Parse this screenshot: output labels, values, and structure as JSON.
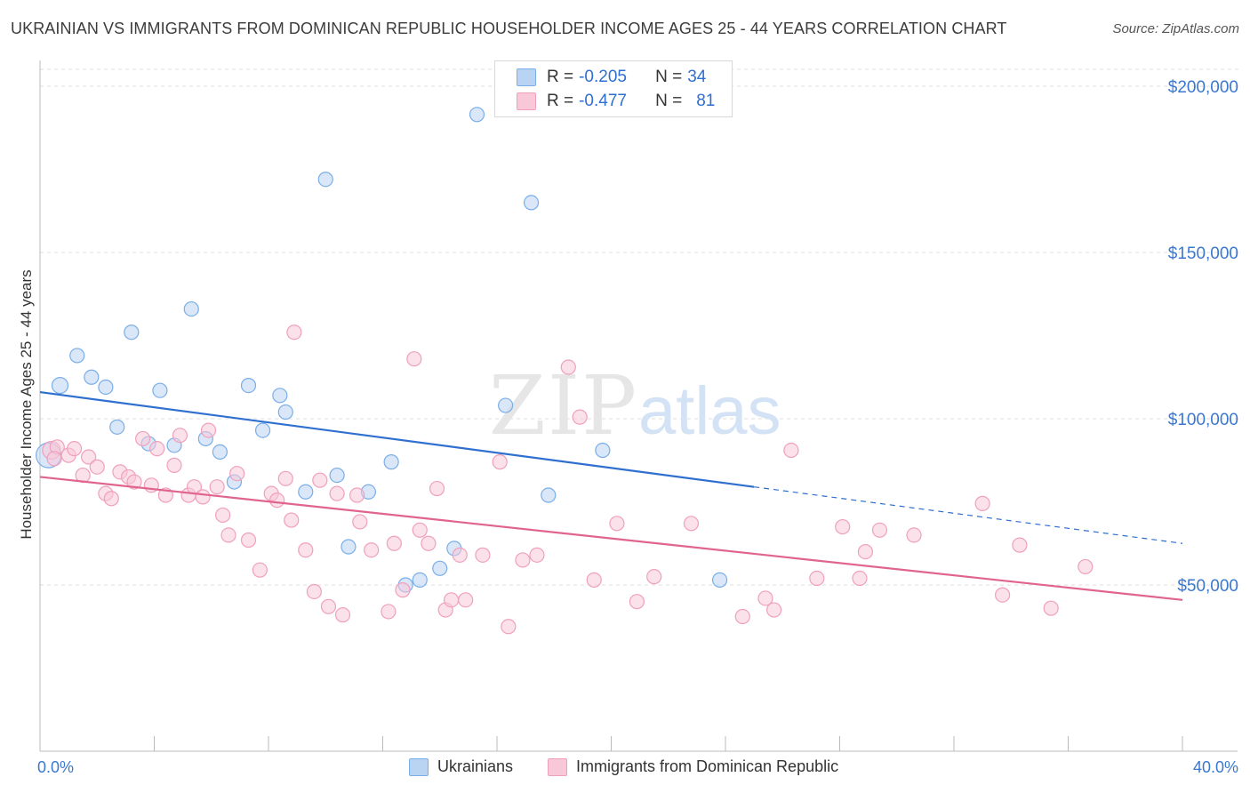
{
  "title": "UKRAINIAN VS IMMIGRANTS FROM DOMINICAN REPUBLIC HOUSEHOLDER INCOME AGES 25 - 44 YEARS CORRELATION CHART",
  "source": "Source: ZipAtlas.com",
  "watermark": {
    "zip": "ZIP",
    "atlas": "atlas"
  },
  "stats": [
    {
      "r_label": "R =",
      "r_value": "-0.205",
      "n_label": "N =",
      "n_value": "34"
    },
    {
      "r_label": "R =",
      "r_value": "-0.477",
      "n_label": "N =",
      "n_value": "81"
    }
  ],
  "legend": [
    {
      "label": "Ukrainians"
    },
    {
      "label": "Immigrants from Dominican Republic"
    }
  ],
  "chart_data": {
    "type": "scatter",
    "ylabel": "Householder Income Ages 25 - 44 years",
    "xlim": [
      0,
      40
    ],
    "ylim": [
      0,
      210000
    ],
    "x_tick_labels": [
      "0.0%",
      "40.0%"
    ],
    "y_ticks": [
      50000,
      100000,
      150000,
      200000
    ],
    "y_tick_labels": [
      "$50,000",
      "$100,000",
      "$150,000",
      "$200,000"
    ],
    "grid": true,
    "legend_position": "bottom",
    "series": [
      {
        "name": "Ukrainians",
        "color": "#7aaee8",
        "fill": "#b9d3f3",
        "line_color": "#2f6fd0",
        "trend": {
          "x0": 0,
          "y0": 108000,
          "x1": 25,
          "y1": 79500,
          "dash_to_x": 40,
          "dash_to_y": 62500
        },
        "points": [
          [
            0.3,
            89000,
            14
          ],
          [
            0.7,
            110000,
            9
          ],
          [
            1.3,
            119000,
            8
          ],
          [
            1.8,
            112500,
            8
          ],
          [
            2.3,
            109500,
            8
          ],
          [
            2.7,
            97500,
            8
          ],
          [
            3.2,
            126000,
            8
          ],
          [
            3.8,
            92500,
            8
          ],
          [
            4.2,
            108500,
            8
          ],
          [
            4.7,
            92000,
            8
          ],
          [
            5.3,
            133000,
            8
          ],
          [
            5.8,
            94000,
            8
          ],
          [
            6.3,
            90000,
            8
          ],
          [
            6.8,
            81000,
            8
          ],
          [
            7.3,
            110000,
            8
          ],
          [
            7.8,
            96500,
            8
          ],
          [
            8.4,
            107000,
            8
          ],
          [
            8.6,
            102000,
            8
          ],
          [
            9.3,
            78000,
            8
          ],
          [
            10.0,
            172000,
            8
          ],
          [
            10.4,
            83000,
            8
          ],
          [
            10.8,
            61500,
            8
          ],
          [
            11.5,
            78000,
            8
          ],
          [
            12.3,
            87000,
            8
          ],
          [
            12.8,
            50000,
            8
          ],
          [
            13.3,
            51500,
            8
          ],
          [
            14.0,
            55000,
            8
          ],
          [
            14.5,
            61000,
            8
          ],
          [
            15.3,
            191500,
            8
          ],
          [
            16.3,
            104000,
            8
          ],
          [
            17.2,
            165000,
            8
          ],
          [
            17.8,
            77000,
            8
          ],
          [
            19.7,
            90500,
            8
          ],
          [
            23.8,
            51500,
            8
          ]
        ]
      },
      {
        "name": "Immigrants from Dominican Republic",
        "color": "#f0a0bb",
        "fill": "#f8c8d8",
        "line_color": "#e0648e",
        "trend": {
          "x0": 0,
          "y0": 82500,
          "x1": 40,
          "y1": 45500
        },
        "points": [
          [
            0.4,
            90500,
            10
          ],
          [
            0.6,
            91500,
            8
          ],
          [
            1.0,
            89000,
            8
          ],
          [
            1.2,
            91000,
            8
          ],
          [
            1.5,
            83000,
            8
          ],
          [
            1.7,
            88500,
            8
          ],
          [
            2.0,
            85500,
            8
          ],
          [
            2.3,
            77500,
            8
          ],
          [
            2.5,
            76000,
            8
          ],
          [
            2.8,
            84000,
            8
          ],
          [
            3.1,
            82500,
            8
          ],
          [
            3.3,
            81000,
            8
          ],
          [
            3.6,
            94000,
            8
          ],
          [
            3.9,
            80000,
            8
          ],
          [
            4.1,
            91000,
            8
          ],
          [
            4.4,
            77000,
            8
          ],
          [
            4.7,
            86000,
            8
          ],
          [
            4.9,
            95000,
            8
          ],
          [
            5.2,
            77000,
            8
          ],
          [
            5.4,
            79500,
            8
          ],
          [
            5.7,
            76500,
            8
          ],
          [
            5.9,
            96500,
            8
          ],
          [
            6.2,
            79500,
            8
          ],
          [
            6.4,
            71000,
            8
          ],
          [
            6.6,
            65000,
            8
          ],
          [
            6.9,
            83500,
            8
          ],
          [
            7.3,
            63500,
            8
          ],
          [
            7.7,
            54500,
            8
          ],
          [
            8.1,
            77500,
            8
          ],
          [
            8.3,
            75500,
            8
          ],
          [
            8.6,
            82000,
            8
          ],
          [
            8.8,
            69500,
            8
          ],
          [
            8.9,
            126000,
            8
          ],
          [
            9.3,
            60500,
            8
          ],
          [
            9.6,
            48000,
            8
          ],
          [
            9.8,
            81500,
            8
          ],
          [
            10.1,
            43500,
            8
          ],
          [
            10.4,
            77500,
            8
          ],
          [
            10.6,
            41000,
            8
          ],
          [
            11.1,
            77000,
            8
          ],
          [
            11.2,
            69000,
            8
          ],
          [
            11.6,
            60500,
            8
          ],
          [
            12.2,
            42000,
            8
          ],
          [
            12.4,
            62500,
            8
          ],
          [
            12.7,
            48500,
            8
          ],
          [
            13.1,
            118000,
            8
          ],
          [
            13.3,
            66500,
            8
          ],
          [
            13.6,
            62500,
            8
          ],
          [
            13.9,
            79000,
            8
          ],
          [
            14.2,
            42500,
            8
          ],
          [
            14.4,
            45500,
            8
          ],
          [
            14.7,
            59000,
            8
          ],
          [
            14.9,
            45500,
            8
          ],
          [
            15.5,
            59000,
            8
          ],
          [
            16.1,
            87000,
            8
          ],
          [
            16.4,
            37500,
            8
          ],
          [
            16.9,
            57500,
            8
          ],
          [
            17.4,
            59000,
            8
          ],
          [
            18.5,
            115500,
            8
          ],
          [
            18.9,
            100500,
            8
          ],
          [
            19.4,
            51500,
            8
          ],
          [
            20.2,
            68500,
            8
          ],
          [
            20.9,
            45000,
            8
          ],
          [
            21.5,
            52500,
            8
          ],
          [
            22.8,
            68500,
            8
          ],
          [
            24.6,
            40500,
            8
          ],
          [
            25.4,
            46000,
            8
          ],
          [
            25.7,
            42500,
            8
          ],
          [
            26.3,
            90500,
            8
          ],
          [
            27.2,
            52000,
            8
          ],
          [
            28.1,
            67500,
            8
          ],
          [
            28.7,
            52000,
            8
          ],
          [
            28.9,
            60000,
            8
          ],
          [
            29.4,
            66500,
            8
          ],
          [
            30.6,
            65000,
            8
          ],
          [
            33.0,
            74500,
            8
          ],
          [
            33.7,
            47000,
            8
          ],
          [
            34.3,
            62000,
            8
          ],
          [
            35.4,
            43000,
            8
          ],
          [
            36.6,
            55500,
            8
          ],
          [
            0.5,
            88000,
            8
          ]
        ]
      }
    ]
  }
}
